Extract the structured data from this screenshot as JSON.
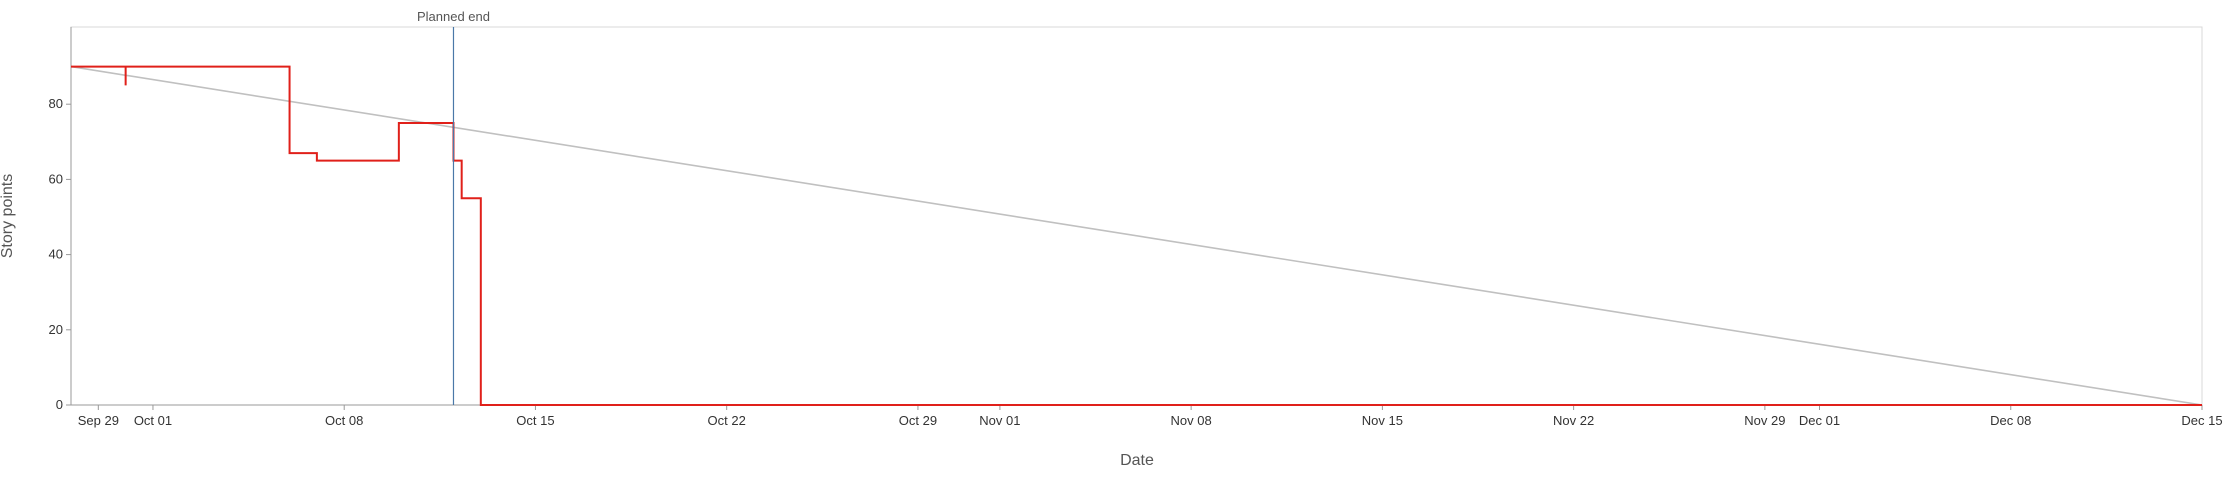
{
  "chart_data": {
    "type": "line",
    "xlabel": "Date",
    "ylabel": "Story points",
    "x_ticks": [
      "Sep 29",
      "Oct 01",
      "Oct 08",
      "Oct 15",
      "Oct 22",
      "Oct 29",
      "Nov 01",
      "Nov 08",
      "Nov 15",
      "Nov 22",
      "Nov 29",
      "Dec 01",
      "Dec 08",
      "Dec 15"
    ],
    "y_ticks": [
      0,
      20,
      40,
      60,
      80
    ],
    "xlim": [
      "2025-09-28",
      "2025-12-15"
    ],
    "ylim": [
      0,
      100
    ],
    "grid": false,
    "marker": {
      "label": "Planned end",
      "date": "2025-10-12",
      "color": "#4a78a8"
    },
    "series": [
      {
        "kind": "ideal",
        "color": "#c0c0c0",
        "points": [
          [
            "2025-09-28",
            90
          ],
          [
            "2025-12-15",
            0
          ]
        ]
      },
      {
        "kind": "remaining",
        "color": "#e0201a",
        "step": true,
        "points": [
          [
            "2025-09-28",
            90
          ],
          [
            "2025-09-30",
            90
          ],
          [
            "2025-09-30",
            85
          ],
          [
            "2025-09-30",
            90
          ],
          [
            "2025-10-06",
            90
          ],
          [
            "2025-10-06",
            67
          ],
          [
            "2025-10-07",
            67
          ],
          [
            "2025-10-07",
            65
          ],
          [
            "2025-10-10",
            65
          ],
          [
            "2025-10-10",
            75
          ],
          [
            "2025-10-12",
            75
          ],
          [
            "2025-10-12",
            65
          ],
          [
            "2025-10-12.3",
            65
          ],
          [
            "2025-10-12.3",
            55
          ],
          [
            "2025-10-13",
            55
          ],
          [
            "2025-10-13",
            0
          ],
          [
            "2025-12-15",
            0
          ]
        ]
      }
    ]
  }
}
